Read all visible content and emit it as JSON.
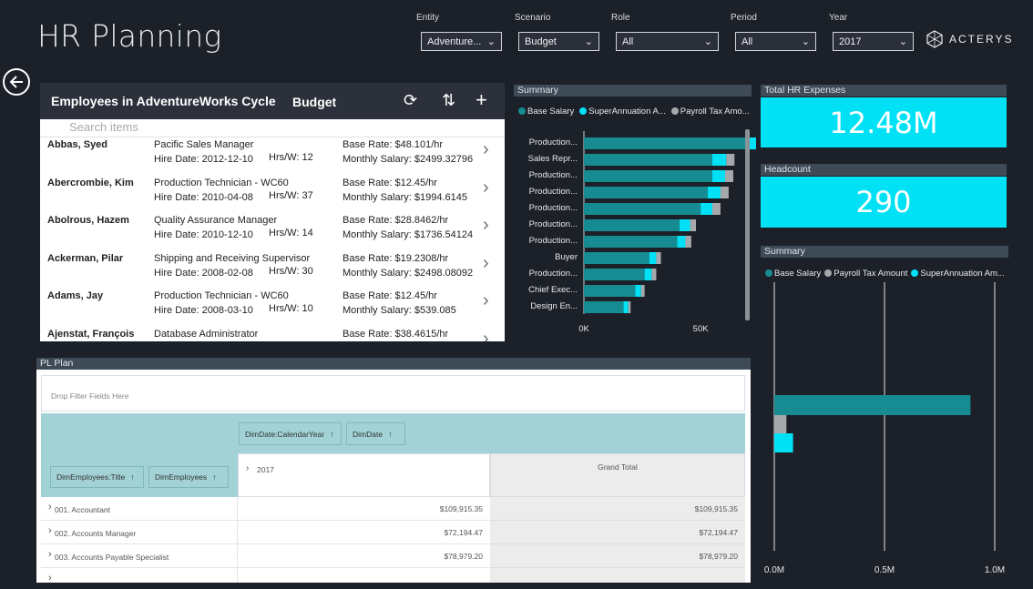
{
  "page": {
    "title": "HR Planning"
  },
  "filters": [
    {
      "label": "Entity",
      "value": "Adventure..."
    },
    {
      "label": "Scenario",
      "value": "Budget"
    },
    {
      "label": "Role",
      "value": "All"
    },
    {
      "label": "Period",
      "value": "All"
    },
    {
      "label": "Year",
      "value": "2017"
    }
  ],
  "brand": {
    "name": "ACTERYS",
    "icon": "acterys-logo-icon"
  },
  "colors": {
    "teal": "#168c92",
    "cyan": "#00e1f5",
    "gray": "#a6a8ab",
    "bg": "#1c2029",
    "header": "#3e4b57"
  },
  "employees": {
    "title": "Employees in AdventureWorks Cycle",
    "scenario": "Budget",
    "search_placeholder": "Search items",
    "rows": [
      {
        "name": "Abbas, Syed",
        "role": "Pacific Sales Manager",
        "hire": "Hire Date: 2012-12-10",
        "hrs": "Hrs/W: 12",
        "rate": "Base Rate: $48.101/hr",
        "salary": "Monthly Salary: $2499.32796"
      },
      {
        "name": "Abercrombie, Kim",
        "role": "Production Technician - WC60",
        "hire": "Hire Date: 2010-04-08",
        "hrs": "Hrs/W: 37",
        "rate": "Base Rate: $12.45/hr",
        "salary": "Monthly Salary: $1994.6145"
      },
      {
        "name": "Abolrous, Hazem",
        "role": "Quality Assurance Manager",
        "hire": "Hire Date: 2010-12-10",
        "hrs": "Hrs/W: 14",
        "rate": "Base Rate: $28.8462/hr",
        "salary": "Monthly Salary: $1736.54124"
      },
      {
        "name": "Ackerman, Pilar",
        "role": "Shipping and Receiving Supervisor",
        "hire": "Hire Date: 2008-02-08",
        "hrs": "Hrs/W: 30",
        "rate": "Base Rate: $19.2308/hr",
        "salary": "Monthly Salary: $2498.08092"
      },
      {
        "name": "Adams, Jay",
        "role": "Production Technician - WC60",
        "hire": "Hire Date: 2008-03-10",
        "hrs": "Hrs/W: 10",
        "rate": "Base Rate: $12.45/hr",
        "salary": "Monthly Salary: $539.085"
      },
      {
        "name": "Ajenstat, François",
        "role": "Database Administrator",
        "hire": "",
        "hrs": "",
        "rate": "Base Rate: $38.4615/hr",
        "salary": ""
      }
    ]
  },
  "summary1": {
    "header": "Summary",
    "legend": [
      "Base Salary",
      "SuperAnnuation A...",
      "Payroll Tax Amo..."
    ]
  },
  "summary2": {
    "header": "Summary",
    "legend": [
      "Base Salary",
      "Payroll Tax Amount",
      "SuperAnnuation Am..."
    ]
  },
  "kpis": {
    "total_hr_label": "Total HR Expenses",
    "total_hr_value": "12.48M",
    "headcount_label": "Headcount",
    "headcount_value": "290"
  },
  "pl": {
    "header": "PL Plan",
    "drop_hint": "Drop Filter Fields Here",
    "col_fields": [
      "DimDate:CalendarYear",
      "DimDate"
    ],
    "row_fields": [
      "DimEmployees:Title",
      "DimEmployees"
    ],
    "year": "2017",
    "grand_total": "Grand Total",
    "rows": [
      {
        "title": "001. Accountant",
        "v2017": "$109,915.35",
        "total": "$109,915.35"
      },
      {
        "title": "002. Accounts Manager",
        "v2017": "$72,194.47",
        "total": "$72,194.47"
      },
      {
        "title": "003. Accounts Payable Specialist",
        "v2017": "$78,979.20",
        "total": "$78,979.20"
      },
      {
        "title": "",
        "v2017": "",
        "total": ""
      }
    ]
  },
  "chart_data": [
    {
      "type": "bar",
      "orientation": "horizontal",
      "stacked": true,
      "categories": [
        "Production...",
        "Sales Repr...",
        "Production...",
        "Production...",
        "Production...",
        "Production...",
        "Production...",
        "Buyer",
        "Production...",
        "Chief Exec...",
        "Design En..."
      ],
      "series": [
        {
          "name": "Base Salary",
          "color": "#168c92",
          "values": [
            69000,
            55000,
            55000,
            53000,
            50000,
            41000,
            40000,
            28000,
            26000,
            22000,
            17000
          ]
        },
        {
          "name": "SuperAnnuation A...",
          "color": "#00e1f5",
          "values": [
            7000,
            6000,
            5500,
            5500,
            5000,
            4500,
            3500,
            3000,
            3000,
            2500,
            2000
          ]
        },
        {
          "name": "Payroll Tax Amo...",
          "color": "#a6a8ab",
          "values": [
            4000,
            3500,
            3500,
            3500,
            3500,
            2500,
            2500,
            2000,
            2000,
            1500,
            1000
          ]
        }
      ],
      "xticks": [
        "0K",
        "50K"
      ],
      "xlim": [
        0,
        80000
      ]
    },
    {
      "type": "bar",
      "orientation": "horizontal",
      "stacked": false,
      "categories": [
        ""
      ],
      "series": [
        {
          "name": "Base Salary",
          "color": "#168c92",
          "values": [
            0.89
          ]
        },
        {
          "name": "Payroll Tax Amount",
          "color": "#a6a8ab",
          "values": [
            0.055
          ]
        },
        {
          "name": "SuperAnnuation Am...",
          "color": "#00e1f5",
          "values": [
            0.085
          ]
        }
      ],
      "xticks": [
        "0.0M",
        "0.5M",
        "1.0M"
      ],
      "xlim": [
        0,
        1.0
      ]
    }
  ]
}
